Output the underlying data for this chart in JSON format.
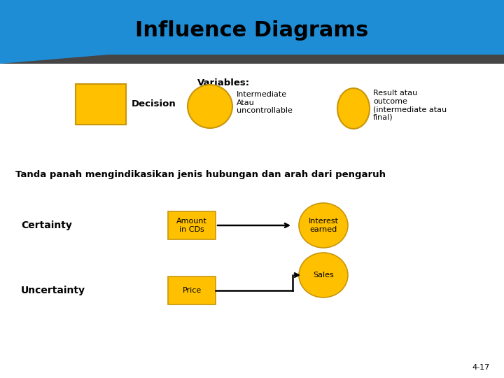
{
  "title": "Influence Diagrams",
  "title_color": "#000000",
  "title_fontsize": 22,
  "header_bg_color": "#1F8DD6",
  "header_stripe_color": "#454545",
  "bg_color": "#FFFFFF",
  "yellow_color": "#FFC000",
  "yellow_border": "#C8960C",
  "variables_label": "Variables:",
  "decision_label": "Decision",
  "intermediate_label": "Intermediate\nAtau\nuncontrollable",
  "result_label": "Result atau\noutcome\n(intermediate atau\nfinal)",
  "tanda_text": "Tanda panah mengindikasikan jenis hubungan dan arah dari pengaruh",
  "certainty_label": "Certainty",
  "uncertainty_label": "Uncertainty",
  "amount_label": "Amount\nin CDs",
  "interest_label": "Interest\nearned",
  "price_label": "Price",
  "sales_label": "Sales",
  "page_number": "4-17"
}
